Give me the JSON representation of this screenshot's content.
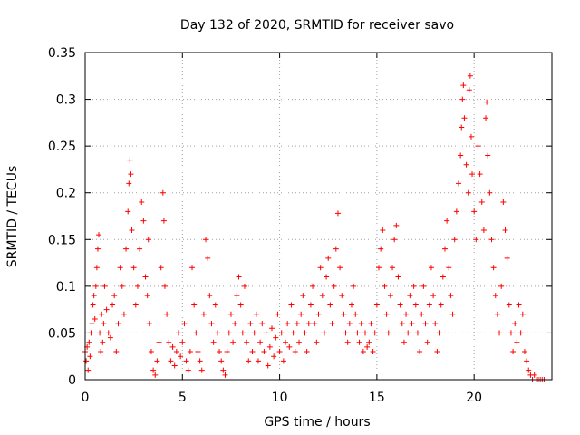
{
  "chart_data": {
    "type": "scatter",
    "title": "Day 132 of 2020, SRMTID for receiver savo",
    "xlabel": "GPS time / hours",
    "ylabel": "SRMTID / TECUs",
    "xlim": [
      0,
      24
    ],
    "ylim": [
      0,
      0.35
    ],
    "xticks": [
      0,
      5,
      10,
      15,
      20
    ],
    "xtick_labels": [
      "0",
      "5",
      "10",
      "15",
      "20"
    ],
    "yticks": [
      0,
      0.05,
      0.1,
      0.15,
      0.2,
      0.25,
      0.3,
      0.35
    ],
    "ytick_labels": [
      "0",
      "0.05",
      "0.1",
      "0.15",
      "0.2",
      "0.25",
      "0.3",
      "0.35"
    ],
    "grid": true,
    "marker": "+",
    "color": "#ff0000",
    "series": [
      {
        "name": "SRMTID",
        "points": [
          [
            0.0,
            0.03
          ],
          [
            0.05,
            0.02
          ],
          [
            0.1,
            0.035
          ],
          [
            0.15,
            0.01
          ],
          [
            0.2,
            0.04
          ],
          [
            0.25,
            0.025
          ],
          [
            0.3,
            0.05
          ],
          [
            0.35,
            0.06
          ],
          [
            0.4,
            0.08
          ],
          [
            0.45,
            0.09
          ],
          [
            0.5,
            0.065
          ],
          [
            0.55,
            0.1
          ],
          [
            0.6,
            0.12
          ],
          [
            0.65,
            0.14
          ],
          [
            0.7,
            0.155
          ],
          [
            0.75,
            0.05
          ],
          [
            0.8,
            0.03
          ],
          [
            0.85,
            0.07
          ],
          [
            0.9,
            0.04
          ],
          [
            0.95,
            0.06
          ],
          [
            1.0,
            0.1
          ],
          [
            1.1,
            0.075
          ],
          [
            1.2,
            0.05
          ],
          [
            1.3,
            0.045
          ],
          [
            1.4,
            0.08
          ],
          [
            1.5,
            0.09
          ],
          [
            1.6,
            0.03
          ],
          [
            1.7,
            0.06
          ],
          [
            1.8,
            0.12
          ],
          [
            1.9,
            0.1
          ],
          [
            2.0,
            0.07
          ],
          [
            2.1,
            0.14
          ],
          [
            2.2,
            0.18
          ],
          [
            2.25,
            0.21
          ],
          [
            2.3,
            0.235
          ],
          [
            2.35,
            0.22
          ],
          [
            2.4,
            0.16
          ],
          [
            2.5,
            0.12
          ],
          [
            2.6,
            0.08
          ],
          [
            2.7,
            0.1
          ],
          [
            2.8,
            0.14
          ],
          [
            2.9,
            0.19
          ],
          [
            3.0,
            0.17
          ],
          [
            3.1,
            0.11
          ],
          [
            3.2,
            0.09
          ],
          [
            3.25,
            0.15
          ],
          [
            3.3,
            0.06
          ],
          [
            3.4,
            0.03
          ],
          [
            3.5,
            0.01
          ],
          [
            3.6,
            0.005
          ],
          [
            3.7,
            0.02
          ],
          [
            3.8,
            0.04
          ],
          [
            3.9,
            0.12
          ],
          [
            4.0,
            0.2
          ],
          [
            4.05,
            0.17
          ],
          [
            4.1,
            0.1
          ],
          [
            4.2,
            0.07
          ],
          [
            4.3,
            0.04
          ],
          [
            4.4,
            0.02
          ],
          [
            4.5,
            0.035
          ],
          [
            4.6,
            0.015
          ],
          [
            4.7,
            0.03
          ],
          [
            4.8,
            0.05
          ],
          [
            4.9,
            0.025
          ],
          [
            5.0,
            0.04
          ],
          [
            5.1,
            0.06
          ],
          [
            5.2,
            0.02
          ],
          [
            5.3,
            0.01
          ],
          [
            5.4,
            0.03
          ],
          [
            5.5,
            0.12
          ],
          [
            5.6,
            0.08
          ],
          [
            5.7,
            0.05
          ],
          [
            5.8,
            0.03
          ],
          [
            5.9,
            0.02
          ],
          [
            6.0,
            0.01
          ],
          [
            6.1,
            0.07
          ],
          [
            6.2,
            0.15
          ],
          [
            6.3,
            0.13
          ],
          [
            6.4,
            0.09
          ],
          [
            6.5,
            0.06
          ],
          [
            6.6,
            0.04
          ],
          [
            6.7,
            0.08
          ],
          [
            6.8,
            0.05
          ],
          [
            6.9,
            0.03
          ],
          [
            7.0,
            0.02
          ],
          [
            7.1,
            0.01
          ],
          [
            7.2,
            0.005
          ],
          [
            7.3,
            0.03
          ],
          [
            7.4,
            0.05
          ],
          [
            7.5,
            0.07
          ],
          [
            7.6,
            0.04
          ],
          [
            7.7,
            0.06
          ],
          [
            7.8,
            0.09
          ],
          [
            7.9,
            0.11
          ],
          [
            8.0,
            0.08
          ],
          [
            8.1,
            0.05
          ],
          [
            8.2,
            0.1
          ],
          [
            8.3,
            0.04
          ],
          [
            8.4,
            0.02
          ],
          [
            8.5,
            0.06
          ],
          [
            8.6,
            0.03
          ],
          [
            8.7,
            0.05
          ],
          [
            8.8,
            0.07
          ],
          [
            8.9,
            0.02
          ],
          [
            9.0,
            0.04
          ],
          [
            9.1,
            0.06
          ],
          [
            9.2,
            0.03
          ],
          [
            9.3,
            0.05
          ],
          [
            9.4,
            0.015
          ],
          [
            9.5,
            0.035
          ],
          [
            9.6,
            0.055
          ],
          [
            9.7,
            0.025
          ],
          [
            9.8,
            0.045
          ],
          [
            9.9,
            0.07
          ],
          [
            10.0,
            0.03
          ],
          [
            10.1,
            0.05
          ],
          [
            10.2,
            0.02
          ],
          [
            10.3,
            0.04
          ],
          [
            10.4,
            0.06
          ],
          [
            10.5,
            0.035
          ],
          [
            10.6,
            0.08
          ],
          [
            10.7,
            0.05
          ],
          [
            10.8,
            0.03
          ],
          [
            10.9,
            0.06
          ],
          [
            11.0,
            0.04
          ],
          [
            11.1,
            0.07
          ],
          [
            11.2,
            0.09
          ],
          [
            11.3,
            0.05
          ],
          [
            11.4,
            0.03
          ],
          [
            11.5,
            0.06
          ],
          [
            11.6,
            0.08
          ],
          [
            11.7,
            0.1
          ],
          [
            11.8,
            0.06
          ],
          [
            11.9,
            0.04
          ],
          [
            12.0,
            0.07
          ],
          [
            12.1,
            0.12
          ],
          [
            12.2,
            0.09
          ],
          [
            12.3,
            0.05
          ],
          [
            12.4,
            0.11
          ],
          [
            12.5,
            0.13
          ],
          [
            12.6,
            0.08
          ],
          [
            12.7,
            0.06
          ],
          [
            12.8,
            0.1
          ],
          [
            12.9,
            0.14
          ],
          [
            13.0,
            0.178
          ],
          [
            13.1,
            0.12
          ],
          [
            13.2,
            0.09
          ],
          [
            13.3,
            0.07
          ],
          [
            13.4,
            0.05
          ],
          [
            13.5,
            0.04
          ],
          [
            13.6,
            0.06
          ],
          [
            13.7,
            0.08
          ],
          [
            13.8,
            0.1
          ],
          [
            13.9,
            0.07
          ],
          [
            14.0,
            0.05
          ],
          [
            14.1,
            0.04
          ],
          [
            14.2,
            0.06
          ],
          [
            14.3,
            0.03
          ],
          [
            14.4,
            0.05
          ],
          [
            14.5,
            0.035
          ],
          [
            14.6,
            0.04
          ],
          [
            14.7,
            0.06
          ],
          [
            14.8,
            0.03
          ],
          [
            14.9,
            0.05
          ],
          [
            15.0,
            0.08
          ],
          [
            15.1,
            0.12
          ],
          [
            15.2,
            0.14
          ],
          [
            15.3,
            0.16
          ],
          [
            15.4,
            0.1
          ],
          [
            15.5,
            0.07
          ],
          [
            15.6,
            0.05
          ],
          [
            15.7,
            0.09
          ],
          [
            15.8,
            0.12
          ],
          [
            15.9,
            0.15
          ],
          [
            16.0,
            0.165
          ],
          [
            16.1,
            0.11
          ],
          [
            16.2,
            0.08
          ],
          [
            16.3,
            0.06
          ],
          [
            16.4,
            0.04
          ],
          [
            16.5,
            0.07
          ],
          [
            16.6,
            0.05
          ],
          [
            16.7,
            0.09
          ],
          [
            16.8,
            0.06
          ],
          [
            16.9,
            0.1
          ],
          [
            17.0,
            0.08
          ],
          [
            17.1,
            0.05
          ],
          [
            17.2,
            0.03
          ],
          [
            17.3,
            0.07
          ],
          [
            17.4,
            0.1
          ],
          [
            17.5,
            0.06
          ],
          [
            17.6,
            0.04
          ],
          [
            17.7,
            0.08
          ],
          [
            17.8,
            0.12
          ],
          [
            17.9,
            0.09
          ],
          [
            18.0,
            0.06
          ],
          [
            18.1,
            0.03
          ],
          [
            18.2,
            0.05
          ],
          [
            18.3,
            0.08
          ],
          [
            18.4,
            0.11
          ],
          [
            18.5,
            0.14
          ],
          [
            18.6,
            0.17
          ],
          [
            18.7,
            0.12
          ],
          [
            18.8,
            0.09
          ],
          [
            18.9,
            0.07
          ],
          [
            19.0,
            0.15
          ],
          [
            19.1,
            0.18
          ],
          [
            19.2,
            0.21
          ],
          [
            19.3,
            0.24
          ],
          [
            19.35,
            0.27
          ],
          [
            19.4,
            0.3
          ],
          [
            19.45,
            0.315
          ],
          [
            19.5,
            0.28
          ],
          [
            19.6,
            0.23
          ],
          [
            19.7,
            0.2
          ],
          [
            19.75,
            0.31
          ],
          [
            19.8,
            0.325
          ],
          [
            19.85,
            0.26
          ],
          [
            19.9,
            0.22
          ],
          [
            20.0,
            0.18
          ],
          [
            20.1,
            0.15
          ],
          [
            20.2,
            0.25
          ],
          [
            20.3,
            0.22
          ],
          [
            20.4,
            0.19
          ],
          [
            20.5,
            0.16
          ],
          [
            20.6,
            0.28
          ],
          [
            20.65,
            0.297
          ],
          [
            20.7,
            0.24
          ],
          [
            20.8,
            0.2
          ],
          [
            20.9,
            0.15
          ],
          [
            21.0,
            0.12
          ],
          [
            21.1,
            0.09
          ],
          [
            21.2,
            0.07
          ],
          [
            21.3,
            0.05
          ],
          [
            21.4,
            0.1
          ],
          [
            21.5,
            0.19
          ],
          [
            21.6,
            0.16
          ],
          [
            21.7,
            0.13
          ],
          [
            21.8,
            0.08
          ],
          [
            21.9,
            0.05
          ],
          [
            22.0,
            0.03
          ],
          [
            22.1,
            0.06
          ],
          [
            22.2,
            0.04
          ],
          [
            22.3,
            0.08
          ],
          [
            22.4,
            0.05
          ],
          [
            22.5,
            0.07
          ],
          [
            22.6,
            0.03
          ],
          [
            22.7,
            0.02
          ],
          [
            22.8,
            0.01
          ],
          [
            22.9,
            0.005
          ],
          [
            23.0,
            0.0
          ],
          [
            23.1,
            0.005
          ],
          [
            23.2,
            0.0
          ],
          [
            23.3,
            0.0
          ],
          [
            23.4,
            0.0
          ],
          [
            23.5,
            0.0
          ],
          [
            23.6,
            0.0
          ]
        ]
      }
    ]
  }
}
